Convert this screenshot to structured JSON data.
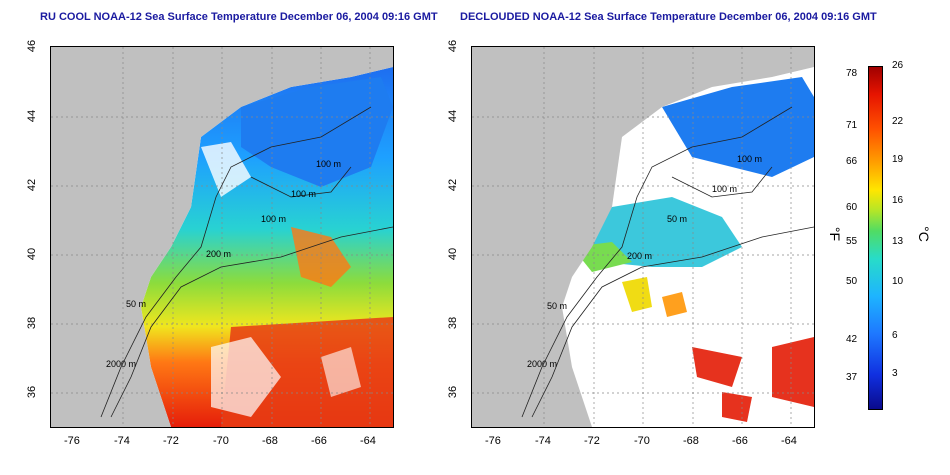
{
  "titles": {
    "left": "RU COOL NOAA-12 Sea Surface Temperature December 06, 2004 09:16 GMT",
    "right": "DECLOUDED NOAA-12 Sea Surface Temperature December 06, 2004 09:16 GMT"
  },
  "axes": {
    "x_ticks": [
      "-76",
      "-74",
      "-72",
      "-70",
      "-68",
      "-66",
      "-64"
    ],
    "y_ticks": [
      "36",
      "38",
      "40",
      "42",
      "44",
      "46"
    ]
  },
  "contours": {
    "left": [
      "100 m",
      "100 m",
      "100 m",
      "200 m",
      "50 m",
      "2000 m"
    ],
    "right": [
      "100 m",
      "100 m",
      "50 m",
      "200 m",
      "50 m",
      "2000 m"
    ]
  },
  "colorbar": {
    "fahrenheit_label": "°F",
    "celsius_label": "°C",
    "fahrenheit_ticks": [
      "78",
      "71",
      "66",
      "60",
      "55",
      "50",
      "42",
      "37"
    ],
    "celsius_ticks": [
      "26",
      "22",
      "19",
      "16",
      "13",
      "10",
      "6",
      "3"
    ]
  },
  "colors": {
    "title": "#1a1aa0",
    "land": "#c0c0c0",
    "cloud": "#ffffff"
  }
}
